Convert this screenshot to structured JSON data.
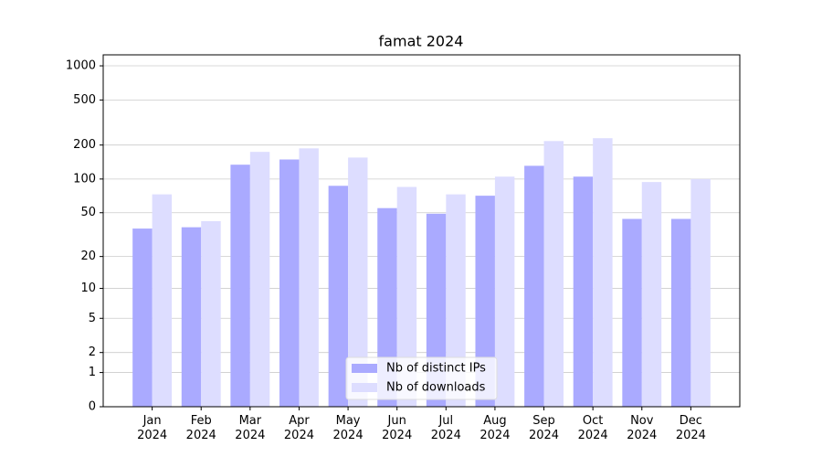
{
  "chart_data": {
    "type": "bar",
    "title": "famat 2024",
    "categories": [
      "Jan\n2024",
      "Feb\n2024",
      "Mar\n2024",
      "Apr\n2024",
      "May\n2024",
      "Jun\n2024",
      "Jul\n2024",
      "Aug\n2024",
      "Sep\n2024",
      "Oct\n2024",
      "Nov\n2024",
      "Dec\n2024"
    ],
    "series": [
      {
        "name": "Nb of distinct IPs",
        "color": "#aaaaff",
        "values": [
          36,
          37,
          134,
          149,
          87,
          55,
          49,
          71,
          131,
          105,
          44,
          44
        ]
      },
      {
        "name": "Nb of downloads",
        "color": "#ddddff",
        "values": [
          73,
          42,
          174,
          187,
          155,
          85,
          73,
          105,
          217,
          230,
          94,
          100
        ]
      }
    ],
    "yscale": "log1p",
    "ylim": [
      0,
      1250
    ],
    "yticks": [
      0,
      1,
      2,
      5,
      10,
      20,
      50,
      100,
      200,
      500,
      1000
    ],
    "grid": true,
    "legend": "lower center"
  }
}
